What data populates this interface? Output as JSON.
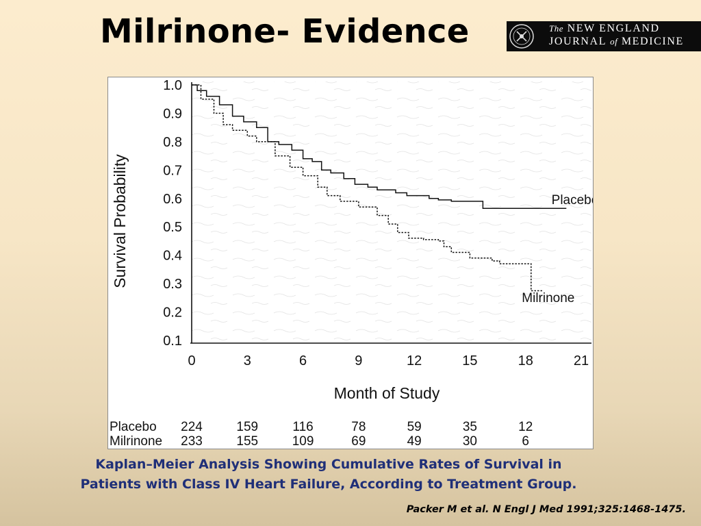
{
  "slide": {
    "title": "Milrinone- Evidence",
    "caption_line1": "Kaplan–Meier Analysis Showing Cumulative Rates of Survival in",
    "caption_line2": "Patients with Class IV Heart Failure, According to Treatment Group.",
    "citation": "Packer M et al. N Engl J Med 1991;325:1468-1475."
  },
  "logo": {
    "line1_the": "The",
    "line1_rest": "NEW ENGLAND",
    "line2_a": "JOURNAL",
    "line2_of": "of",
    "line2_b": "MEDICINE"
  },
  "colors": {
    "title": "#000000",
    "caption": "#1f2f78",
    "logo_bg": "#0c0c0c"
  },
  "chart_data": {
    "type": "line",
    "xlabel": "Month of Study",
    "ylabel": "Survival Probability",
    "xlim": [
      0,
      21
    ],
    "ylim": [
      0.1,
      1.0
    ],
    "x_ticks": [
      "0",
      "3",
      "6",
      "9",
      "12",
      "15",
      "18",
      "21"
    ],
    "y_ticks": [
      "1.0",
      "0.9",
      "0.8",
      "0.7",
      "0.6",
      "0.5",
      "0.4",
      "0.3",
      "0.2",
      "0.1"
    ],
    "grid": false,
    "series": [
      {
        "name": "Placebo",
        "style": "solid",
        "points": [
          [
            0,
            1.0
          ],
          [
            0.3,
            0.98
          ],
          [
            0.8,
            0.96
          ],
          [
            1.5,
            0.93
          ],
          [
            2.2,
            0.89
          ],
          [
            2.8,
            0.87
          ],
          [
            3.5,
            0.85
          ],
          [
            4.1,
            0.8
          ],
          [
            4.7,
            0.79
          ],
          [
            5.4,
            0.77
          ],
          [
            6.0,
            0.74
          ],
          [
            6.5,
            0.73
          ],
          [
            7.0,
            0.7
          ],
          [
            7.5,
            0.69
          ],
          [
            8.2,
            0.67
          ],
          [
            8.8,
            0.65
          ],
          [
            9.5,
            0.64
          ],
          [
            10.0,
            0.63
          ],
          [
            11.0,
            0.62
          ],
          [
            11.6,
            0.61
          ],
          [
            12.8,
            0.6
          ],
          [
            13.3,
            0.595
          ],
          [
            14.0,
            0.59
          ],
          [
            15.7,
            0.58
          ],
          [
            15.7,
            0.565
          ],
          [
            20.2,
            0.565
          ]
        ]
      },
      {
        "name": "Milrinone",
        "style": "dashed",
        "points": [
          [
            0,
            1.0
          ],
          [
            0.5,
            0.95
          ],
          [
            1.2,
            0.9
          ],
          [
            1.7,
            0.86
          ],
          [
            2.2,
            0.84
          ],
          [
            3.0,
            0.82
          ],
          [
            3.5,
            0.8
          ],
          [
            4.5,
            0.75
          ],
          [
            5.3,
            0.71
          ],
          [
            6.0,
            0.68
          ],
          [
            6.8,
            0.64
          ],
          [
            7.3,
            0.61
          ],
          [
            8.0,
            0.59
          ],
          [
            9.0,
            0.57
          ],
          [
            10.0,
            0.54
          ],
          [
            10.6,
            0.51
          ],
          [
            11.1,
            0.48
          ],
          [
            11.7,
            0.46
          ],
          [
            12.5,
            0.455
          ],
          [
            13.3,
            0.45
          ],
          [
            13.6,
            0.43
          ],
          [
            14.0,
            0.41
          ],
          [
            15.0,
            0.39
          ],
          [
            16.2,
            0.38
          ],
          [
            16.6,
            0.37
          ],
          [
            18.3,
            0.365
          ],
          [
            18.3,
            0.275
          ],
          [
            18.9,
            0.275
          ]
        ]
      }
    ],
    "annotations": [
      {
        "text": "Placebo",
        "x": 19.4,
        "y": 0.58
      },
      {
        "text": "Milrinone",
        "x": 17.8,
        "y": 0.235
      }
    ],
    "at_risk": {
      "columns_x": [
        0,
        3,
        6,
        9,
        12,
        15,
        18
      ],
      "rows": [
        {
          "label": "Placebo",
          "values": [
            "224",
            "159",
            "116",
            "78",
            "59",
            "35",
            "12"
          ]
        },
        {
          "label": "Milrinone",
          "values": [
            "233",
            "155",
            "109",
            "69",
            "49",
            "30",
            "6"
          ]
        }
      ]
    }
  }
}
